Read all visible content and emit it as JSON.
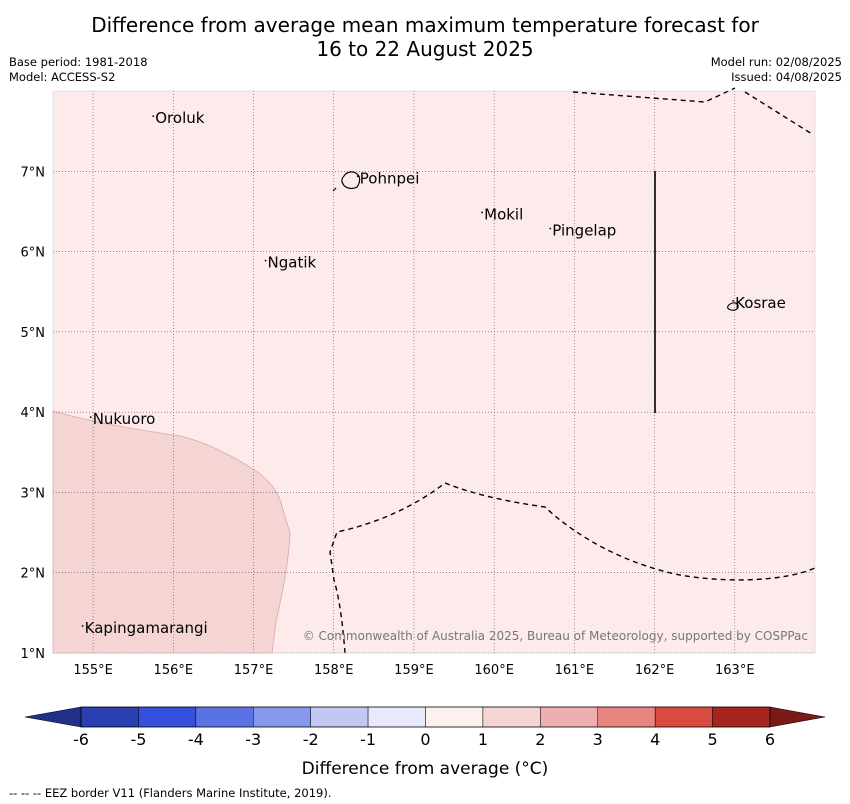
{
  "title_line1": "Difference from average mean maximum temperature forecast for",
  "title_line2": "16 to 22 August 2025",
  "meta_left": {
    "base_period": "Base period: 1981-2018",
    "model": "Model: ACCESS-S2"
  },
  "meta_right": {
    "model_run": "Model run: 02/08/2025",
    "issued": "Issued: 04/08/2025"
  },
  "map": {
    "lon_range": [
      154.5,
      164.0
    ],
    "lat_range": [
      1.0,
      8.0
    ],
    "lon_ticks": [
      155,
      156,
      157,
      158,
      159,
      160,
      161,
      162,
      163
    ],
    "lon_tick_labels": [
      "155°E",
      "156°E",
      "157°E",
      "158°E",
      "159°E",
      "160°E",
      "161°E",
      "162°E",
      "163°E"
    ],
    "lat_ticks": [
      1,
      2,
      3,
      4,
      5,
      6,
      7
    ],
    "lat_tick_labels": [
      "1°N",
      "2°N",
      "3°N",
      "4°N",
      "5°N",
      "6°N",
      "7°N"
    ],
    "background_class_color": "#fcebea",
    "warm_region_color": "#f5d4d4",
    "places": [
      {
        "name": "Oroluk",
        "lon": 155.75,
        "lat": 7.6
      },
      {
        "name": "Pohnpei",
        "lon": 158.3,
        "lat": 6.85
      },
      {
        "name": "Mokil",
        "lon": 159.85,
        "lat": 6.4
      },
      {
        "name": "Pingelap",
        "lon": 160.7,
        "lat": 6.2
      },
      {
        "name": "Ngatik",
        "lon": 157.15,
        "lat": 5.8
      },
      {
        "name": "Kosrae",
        "lon": 162.98,
        "lat": 5.3
      },
      {
        "name": "Nukuoro",
        "lon": 154.97,
        "lat": 3.85
      },
      {
        "name": "Kapingamarangi",
        "lon": 154.87,
        "lat": 1.25
      }
    ],
    "copyright": "© Commonwealth of Australia 2025, Bureau of Meteorology, supported by COSPPac"
  },
  "colorbar": {
    "ticks": [
      "-6",
      "-5",
      "-4",
      "-3",
      "-2",
      "-1",
      "0",
      "1",
      "2",
      "3",
      "4",
      "5",
      "6"
    ],
    "colors": [
      "#2a3fb0",
      "#3550dc",
      "#5a72e4",
      "#8898ea",
      "#c2c8f4",
      "#e8eafc",
      "#fdf0ef",
      "#f5d4d4",
      "#eeb0ae",
      "#e8857f",
      "#d94a40",
      "#a8241e"
    ],
    "under_color": "#1f2f8a",
    "over_color": "#7a1a16",
    "label": "Difference from average (°C)"
  },
  "footer_note": "--  --  -- EEZ border V11 (Flanders Marine Institute, 2019)."
}
